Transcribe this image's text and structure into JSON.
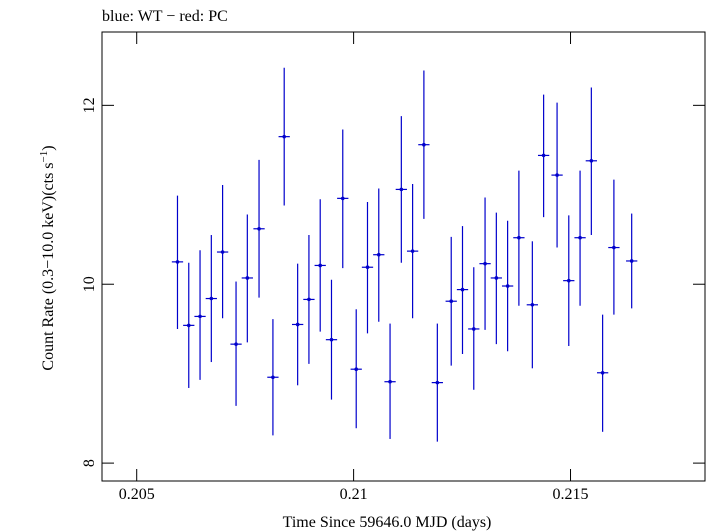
{
  "chart_data": {
    "type": "scatter",
    "title": "blue: WT − red: PC",
    "xlabel": "Time Since 59646.0 MJD (days)",
    "ylabel_main": "Count Rate (0.3−10.0 keV)(cts s",
    "ylabel_sup": "−1",
    "ylabel_end": ")",
    "xlim": [
      0.2042,
      0.2181
    ],
    "ylim": [
      7.8,
      12.82
    ],
    "xticks": [
      {
        "value": 0.205,
        "label": "0.205"
      },
      {
        "value": 0.21,
        "label": "0.21"
      },
      {
        "value": 0.215,
        "label": "0.215"
      }
    ],
    "yticks": [
      {
        "value": 8,
        "label": "8"
      },
      {
        "value": 10,
        "label": "10"
      },
      {
        "value": 12,
        "label": "12"
      }
    ],
    "grid": false,
    "series": [
      {
        "color": "#0000cc",
        "xerr": 0.00013,
        "points": [
          {
            "x": 0.20594,
            "y": 10.25,
            "ylo": 9.5,
            "yhi": 10.99
          },
          {
            "x": 0.2062,
            "y": 9.54,
            "ylo": 8.84,
            "yhi": 10.24
          },
          {
            "x": 0.20646,
            "y": 9.64,
            "ylo": 8.93,
            "yhi": 10.38
          },
          {
            "x": 0.20672,
            "y": 9.84,
            "ylo": 9.13,
            "yhi": 10.55
          },
          {
            "x": 0.20698,
            "y": 10.36,
            "ylo": 9.62,
            "yhi": 11.11
          },
          {
            "x": 0.20729,
            "y": 9.33,
            "ylo": 8.64,
            "yhi": 10.03
          },
          {
            "x": 0.20755,
            "y": 10.07,
            "ylo": 9.35,
            "yhi": 10.78
          },
          {
            "x": 0.20782,
            "y": 10.62,
            "ylo": 9.85,
            "yhi": 11.39
          },
          {
            "x": 0.20814,
            "y": 8.96,
            "ylo": 8.31,
            "yhi": 9.61
          },
          {
            "x": 0.2084,
            "y": 11.65,
            "ylo": 10.88,
            "yhi": 12.42
          },
          {
            "x": 0.20871,
            "y": 9.55,
            "ylo": 8.87,
            "yhi": 10.23
          },
          {
            "x": 0.20897,
            "y": 9.83,
            "ylo": 9.11,
            "yhi": 10.55
          },
          {
            "x": 0.20923,
            "y": 10.21,
            "ylo": 9.47,
            "yhi": 10.95
          },
          {
            "x": 0.20949,
            "y": 9.38,
            "ylo": 8.71,
            "yhi": 10.05
          },
          {
            "x": 0.20975,
            "y": 10.96,
            "ylo": 10.18,
            "yhi": 11.73
          },
          {
            "x": 0.21006,
            "y": 9.05,
            "ylo": 8.39,
            "yhi": 9.72
          },
          {
            "x": 0.21032,
            "y": 10.19,
            "ylo": 9.45,
            "yhi": 10.92
          },
          {
            "x": 0.21058,
            "y": 10.33,
            "ylo": 9.58,
            "yhi": 11.07
          },
          {
            "x": 0.21084,
            "y": 8.91,
            "ylo": 8.27,
            "yhi": 9.56
          },
          {
            "x": 0.2111,
            "y": 11.06,
            "ylo": 10.24,
            "yhi": 11.88
          },
          {
            "x": 0.21136,
            "y": 10.37,
            "ylo": 9.62,
            "yhi": 11.12
          },
          {
            "x": 0.21162,
            "y": 11.56,
            "ylo": 10.73,
            "yhi": 12.39
          },
          {
            "x": 0.21193,
            "y": 8.9,
            "ylo": 8.24,
            "yhi": 9.56
          },
          {
            "x": 0.21225,
            "y": 9.81,
            "ylo": 9.09,
            "yhi": 10.53
          },
          {
            "x": 0.21251,
            "y": 9.94,
            "ylo": 9.22,
            "yhi": 10.65
          },
          {
            "x": 0.21277,
            "y": 9.5,
            "ylo": 8.82,
            "yhi": 10.19
          },
          {
            "x": 0.21303,
            "y": 10.23,
            "ylo": 9.49,
            "yhi": 10.97
          },
          {
            "x": 0.21329,
            "y": 10.07,
            "ylo": 9.33,
            "yhi": 10.8
          },
          {
            "x": 0.21355,
            "y": 9.98,
            "ylo": 9.25,
            "yhi": 10.71
          },
          {
            "x": 0.21381,
            "y": 10.52,
            "ylo": 9.76,
            "yhi": 11.27
          },
          {
            "x": 0.21412,
            "y": 9.77,
            "ylo": 9.06,
            "yhi": 10.48
          },
          {
            "x": 0.21438,
            "y": 11.44,
            "ylo": 10.75,
            "yhi": 12.12
          },
          {
            "x": 0.21469,
            "y": 11.22,
            "ylo": 10.41,
            "yhi": 12.03
          },
          {
            "x": 0.21496,
            "y": 10.04,
            "ylo": 9.31,
            "yhi": 10.77
          },
          {
            "x": 0.21522,
            "y": 10.52,
            "ylo": 9.76,
            "yhi": 11.27
          },
          {
            "x": 0.21548,
            "y": 11.38,
            "ylo": 10.55,
            "yhi": 12.2
          },
          {
            "x": 0.21574,
            "y": 9.01,
            "ylo": 8.35,
            "yhi": 9.66
          },
          {
            "x": 0.216,
            "y": 10.41,
            "ylo": 9.66,
            "yhi": 11.17
          },
          {
            "x": 0.21641,
            "y": 10.26,
            "ylo": 9.73,
            "yhi": 10.79
          }
        ]
      }
    ]
  }
}
